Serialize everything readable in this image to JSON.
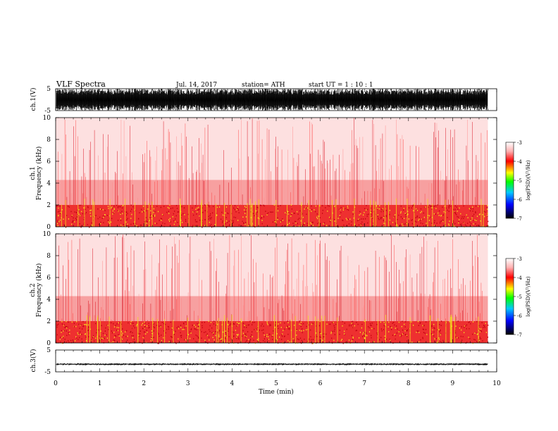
{
  "header": {
    "title": "VLF  Spectra",
    "date": "Jul.  14,  2017",
    "station": "station= ATH",
    "start": "start  UT  =    1  : 10 : 1"
  },
  "colors": {
    "spectrogram_base": "#e8121c",
    "spectrogram_hot": "#f2e21a",
    "waveform": "#000000"
  },
  "colorbar": {
    "label": "log(PSD)(V²/Hz)",
    "ticks": [
      "-3",
      "-4",
      "-5",
      "-6",
      "-7"
    ],
    "stops": [
      "#ffffff",
      "#ff8080",
      "#ff0000",
      "#ffff00",
      "#00ff00",
      "#00c0ff",
      "#0000ff",
      "#000000"
    ]
  },
  "chart_data": [
    {
      "type": "line",
      "name": "ch1-waveform",
      "ylabel": "ch.1(V)",
      "ylim": [
        -5,
        5
      ],
      "yticks": [
        "5",
        "-5"
      ],
      "xlim": [
        0,
        10
      ],
      "approx_amplitude": 5,
      "x_end": 9.8
    },
    {
      "type": "heatmap",
      "name": "ch1-spectrogram",
      "ylabel": "ch.1",
      "ylabel2": "Frequency  (kHz)",
      "ylim": [
        0,
        10
      ],
      "yticks": [
        "10",
        "8",
        "6",
        "4",
        "2",
        "0"
      ],
      "xlim": [
        0,
        10
      ],
      "x_end": 9.8,
      "bands": [
        {
          "f_low": 0,
          "f_high": 2,
          "level": "high"
        },
        {
          "f_low": 2,
          "f_high": 4.3,
          "level": "medium"
        },
        {
          "f_low": 4.3,
          "f_high": 10,
          "level": "low"
        }
      ]
    },
    {
      "type": "heatmap",
      "name": "ch2-spectrogram",
      "ylabel": "ch.2",
      "ylabel2": "Frequency  (kHz)",
      "ylim": [
        0,
        10
      ],
      "yticks": [
        "10",
        "8",
        "6",
        "4",
        "2",
        "0"
      ],
      "xlim": [
        0,
        10
      ],
      "x_end": 9.8,
      "bands": [
        {
          "f_low": 0,
          "f_high": 2,
          "level": "high"
        },
        {
          "f_low": 2,
          "f_high": 4.3,
          "level": "medium"
        },
        {
          "f_low": 4.3,
          "f_high": 10,
          "level": "low"
        }
      ]
    },
    {
      "type": "line",
      "name": "ch3-waveform",
      "ylabel": "ch.3(V)",
      "ylim": [
        -5,
        5
      ],
      "yticks": [
        "5",
        "-5"
      ],
      "xlim": [
        0,
        10
      ],
      "approx_level": -1.5,
      "approx_amplitude": 0.3,
      "x_end": 9.8
    }
  ],
  "xaxis": {
    "label": "Time  (min)",
    "ticks": [
      "0",
      "1",
      "2",
      "3",
      "4",
      "5",
      "6",
      "7",
      "8",
      "9",
      "10"
    ]
  }
}
